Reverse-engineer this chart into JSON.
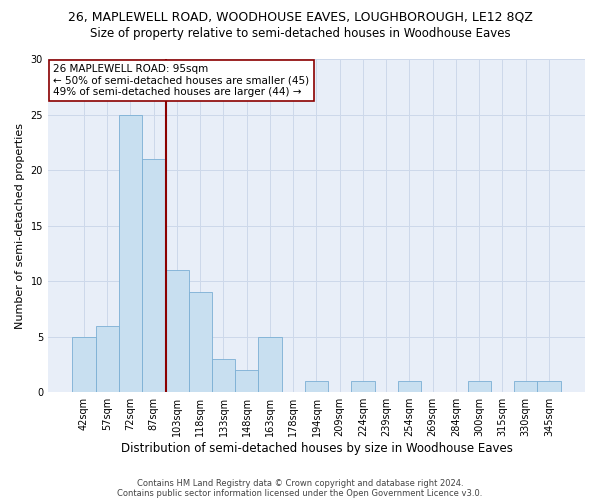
{
  "title": "26, MAPLEWELL ROAD, WOODHOUSE EAVES, LOUGHBOROUGH, LE12 8QZ",
  "subtitle": "Size of property relative to semi-detached houses in Woodhouse Eaves",
  "xlabel": "Distribution of semi-detached houses by size in Woodhouse Eaves",
  "ylabel": "Number of semi-detached properties",
  "footnote1": "Contains HM Land Registry data © Crown copyright and database right 2024.",
  "footnote2": "Contains public sector information licensed under the Open Government Licence v3.0.",
  "bar_labels": [
    "42sqm",
    "57sqm",
    "72sqm",
    "87sqm",
    "103sqm",
    "118sqm",
    "133sqm",
    "148sqm",
    "163sqm",
    "178sqm",
    "194sqm",
    "209sqm",
    "224sqm",
    "239sqm",
    "254sqm",
    "269sqm",
    "284sqm",
    "300sqm",
    "315sqm",
    "330sqm",
    "345sqm"
  ],
  "bar_values": [
    5,
    6,
    25,
    21,
    11,
    9,
    3,
    2,
    5,
    0,
    1,
    0,
    1,
    0,
    1,
    0,
    0,
    1,
    0,
    1,
    1
  ],
  "bar_color": "#c8dff0",
  "bar_edge_color": "#7bafd4",
  "bar_width": 1.0,
  "ylim": [
    0,
    30
  ],
  "yticks": [
    0,
    5,
    10,
    15,
    20,
    25,
    30
  ],
  "property_label": "26 MAPLEWELL ROAD: 95sqm",
  "annotation_line1": "← 50% of semi-detached houses are smaller (45)",
  "annotation_line2": "49% of semi-detached houses are larger (44) →",
  "vline_color": "#8b0000",
  "annotation_box_edge_color": "#8b0000",
  "grid_color": "#cdd8ea",
  "bg_color": "#e8eef8",
  "title_fontsize": 9,
  "subtitle_fontsize": 8.5,
  "xlabel_fontsize": 8.5,
  "ylabel_fontsize": 8,
  "tick_fontsize": 7,
  "annotation_fontsize": 7.5,
  "footnote_fontsize": 6
}
